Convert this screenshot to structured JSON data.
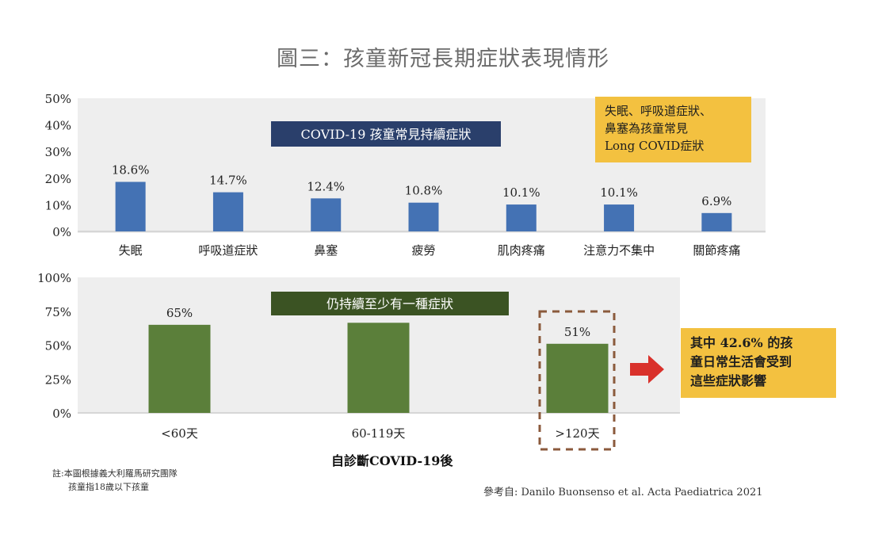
{
  "title": "圖三：孩童新冠長期症狀表現情形",
  "top_panel_label": "COVID-19 孩童常見持續症狀",
  "bottom_panel_label": "仍持續至少有一種症狀",
  "callout_top": [
    "失眠、呼吸道症狀、",
    "鼻塞為孩童常見",
    "Long COVID症狀"
  ],
  "callout_right": [
    "其中 42.6% 的孩",
    "童日常生活會受到",
    "這些症狀影響"
  ],
  "bottom_xlabel": "自診斷COVID-19後",
  "note": [
    "註:本圖根據義大利羅馬研究團隊",
    "孩童指18歲以下孩童"
  ],
  "source": "參考自: Danilo Buonsenso et al. Acta Paediatrica 2021",
  "colors": {
    "top_bar": "#4472b4",
    "bottom_bar": "#5b7f3a",
    "panel_bg": "#eeeeee",
    "top_label_bg": "#2a3f6b",
    "bottom_label_bg": "#3b5323",
    "callout": "#f3c140",
    "arrow": "#d9312b",
    "dashed_box": "#8b5a3c"
  },
  "chart_data": [
    {
      "type": "bar",
      "categories": [
        "失眠",
        "呼吸道症狀",
        "鼻塞",
        "疲勞",
        "肌肉疼痛",
        "注意力不集中",
        "關節疼痛"
      ],
      "values": [
        18.6,
        14.7,
        12.4,
        10.8,
        10.1,
        10.1,
        6.9
      ],
      "value_labels": [
        "18.6%",
        "14.7%",
        "12.4%",
        "10.8%",
        "10.1%",
        "10.1%",
        "6.9%"
      ],
      "yticks": [
        "0%",
        "10%",
        "20%",
        "30%",
        "40%",
        "50%"
      ],
      "ylim": [
        0,
        50
      ],
      "grid": false
    },
    {
      "type": "bar",
      "categories": [
        "<60天",
        "60-119天",
        ">120天"
      ],
      "values": [
        65,
        66.5,
        51
      ],
      "value_labels": [
        "65%",
        "",
        "51%"
      ],
      "yticks": [
        "0%",
        "25%",
        "50%",
        "75%",
        "100%"
      ],
      "ylim": [
        0,
        100
      ],
      "xlabel": "自診斷COVID-19後",
      "grid": false
    }
  ]
}
